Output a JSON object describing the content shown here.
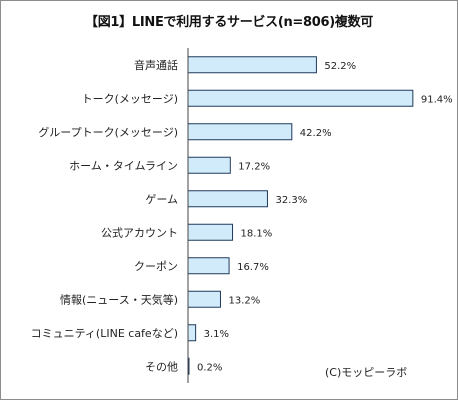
{
  "chart_data": {
    "type": "bar",
    "orientation": "horizontal",
    "title": "【図1】LINEで利用するサービス(n=806)複数可",
    "categories": [
      "音声通話",
      "トーク(メッセージ)",
      "グループトーク(メッセージ)",
      "ホーム・タイムライン",
      "ゲーム",
      "公式アカウント",
      "クーポン",
      "情報(ニュース・天気等)",
      "コミュニティ(LINE cafeなど)",
      "その他"
    ],
    "values": [
      52.2,
      91.4,
      42.2,
      17.2,
      32.3,
      18.1,
      16.7,
      13.2,
      3.1,
      0.2
    ],
    "value_labels": [
      "52.2%",
      "91.4%",
      "42.2%",
      "17.2%",
      "32.3%",
      "18.1%",
      "16.7%",
      "13.2%",
      "3.1%",
      "0.2%"
    ],
    "xlim": [
      0,
      100
    ],
    "unit": "%",
    "grid": false,
    "bar_color": "#d2ebfa",
    "bar_edge_color": "#1f3a5c"
  },
  "credit": "(C)モッピーラボ"
}
